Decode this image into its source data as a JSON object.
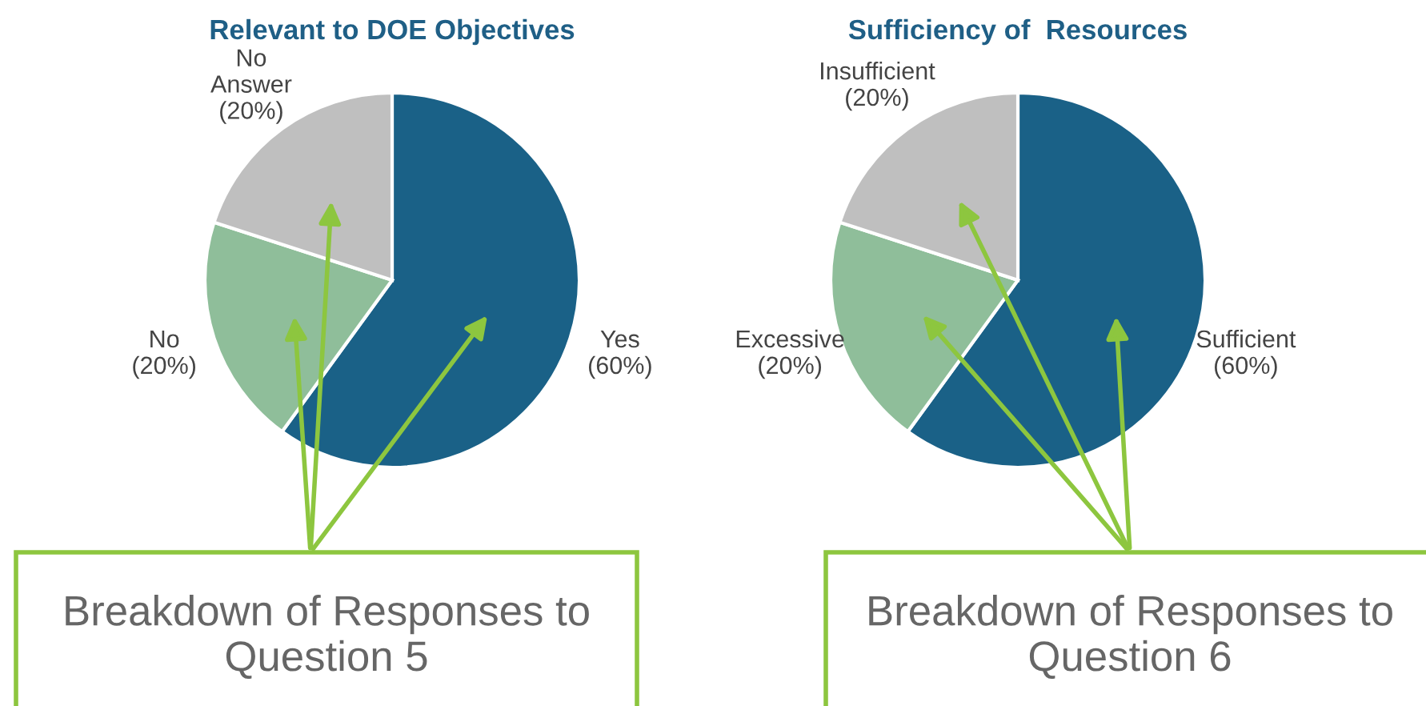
{
  "chart_data": [
    {
      "type": "pie",
      "title": "Relevant to DOE Objectives",
      "categories": [
        "Yes",
        "No",
        "No Answer"
      ],
      "values": [
        60,
        20,
        20
      ],
      "colors": [
        "#1a6187",
        "#8fbe9a",
        "#bfbfbf"
      ],
      "value_labels": [
        "(60%)",
        "(20%)",
        "(20%)"
      ],
      "annotations": [
        "Breakdown of Responses to Question 5"
      ]
    },
    {
      "type": "pie",
      "title": "Sufficiency of  Resources",
      "categories": [
        "Sufficient",
        "Excessive",
        "Insufficient"
      ],
      "values": [
        60,
        20,
        20
      ],
      "colors": [
        "#1a6187",
        "#8fbe9a",
        "#bfbfbf"
      ],
      "value_labels": [
        "(60%)",
        "(20%)",
        "(20%)"
      ],
      "annotations": [
        "Breakdown of Responses to Question 6"
      ]
    }
  ]
}
